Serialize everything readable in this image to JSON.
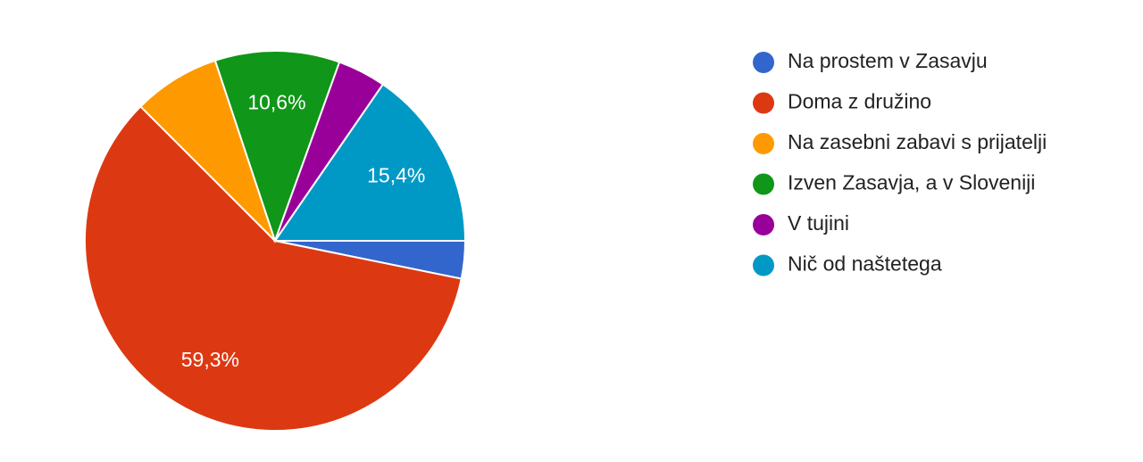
{
  "chart_data": {
    "type": "pie",
    "categories": [
      "Na prostem v Zasavju",
      "Doma z družino",
      "Na zasebni zabavi s prijatelji",
      "Izven Zasavja, a v Sloveniji",
      "V tujini",
      "Nič od naštetega"
    ],
    "values": [
      3.2,
      59.3,
      7.4,
      10.6,
      4.1,
      15.4
    ],
    "value_labels": [
      null,
      "59,3%",
      null,
      "10,6%",
      null,
      "15,4%"
    ],
    "colors": [
      "#3366cc",
      "#dc3912",
      "#ff9900",
      "#109618",
      "#990099",
      "#0099c6"
    ],
    "legend": "right"
  }
}
